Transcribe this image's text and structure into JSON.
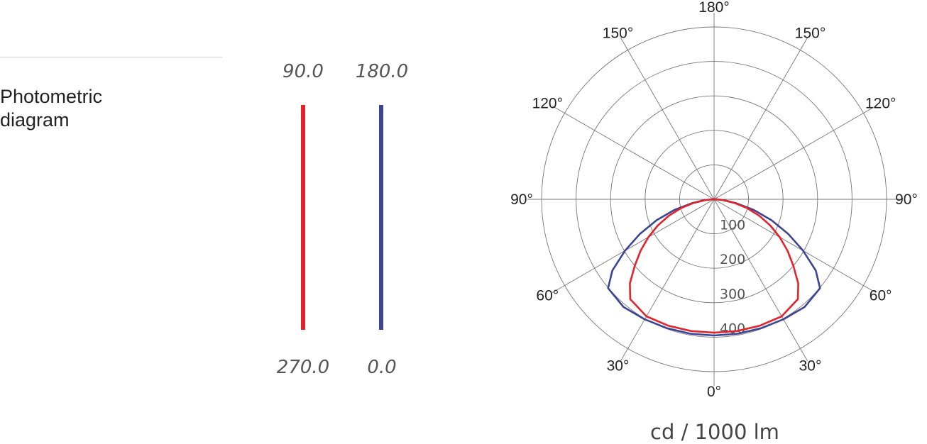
{
  "section": {
    "title_line1": "Photometric",
    "title_line2": "diagram"
  },
  "legend": {
    "series": [
      {
        "name_top": "90.0",
        "name_bottom": "270.0",
        "color": "#e3232a"
      },
      {
        "name_top": "180.0",
        "name_bottom": "0.0",
        "color": "#3a4594"
      }
    ]
  },
  "chart_data": {
    "type": "polar",
    "title": "",
    "unit": "cd / 1000 lm",
    "radial_ticks": [
      "100",
      "200",
      "300",
      "400"
    ],
    "radial_max": 500,
    "angle_labels": [
      {
        "label": "0°",
        "angle": 0
      },
      {
        "label": "30°",
        "angle": 30
      },
      {
        "label": "30°",
        "angle": -30
      },
      {
        "label": "60°",
        "angle": 60
      },
      {
        "label": "60°",
        "angle": -60
      },
      {
        "label": "90°",
        "angle": 90
      },
      {
        "label": "90°",
        "angle": -90
      },
      {
        "label": "120°",
        "angle": 120
      },
      {
        "label": "120°",
        "angle": -120
      },
      {
        "label": "150°",
        "angle": 150
      },
      {
        "label": "150°",
        "angle": -150
      },
      {
        "label": "180°",
        "angle": 180
      }
    ],
    "series": [
      {
        "name": "180.0 / 0.0",
        "color": "#3a4594",
        "points": [
          [
            0,
            395
          ],
          [
            10,
            396
          ],
          [
            20,
            398
          ],
          [
            30,
            402
          ],
          [
            40,
            408
          ],
          [
            50,
            401
          ],
          [
            55,
            360
          ],
          [
            60,
            298
          ],
          [
            65,
            237
          ],
          [
            70,
            177
          ],
          [
            75,
            119
          ],
          [
            80,
            65
          ],
          [
            85,
            30
          ],
          [
            90,
            8
          ]
        ]
      },
      {
        "name": "90.0 / 270.0",
        "color": "#e3232a",
        "points": [
          [
            0,
            387
          ],
          [
            10,
            388
          ],
          [
            20,
            390
          ],
          [
            30,
            392
          ],
          [
            40,
            378
          ],
          [
            45,
            345
          ],
          [
            50,
            300
          ],
          [
            55,
            260
          ],
          [
            60,
            220
          ],
          [
            65,
            180
          ],
          [
            70,
            140
          ],
          [
            75,
            100
          ],
          [
            80,
            60
          ],
          [
            85,
            25
          ],
          [
            90,
            4
          ]
        ]
      }
    ]
  }
}
